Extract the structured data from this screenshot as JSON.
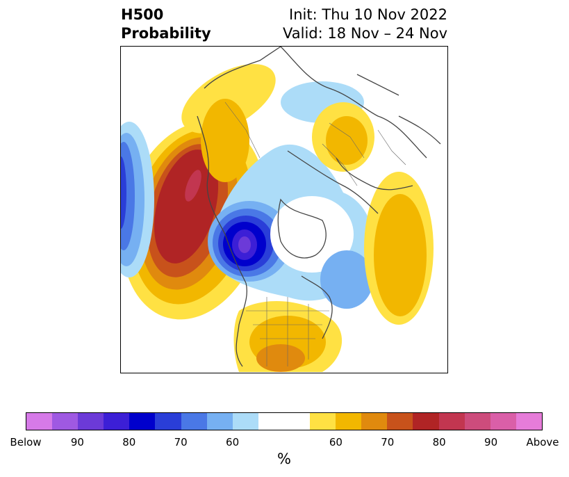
{
  "title": {
    "line1": "H500",
    "line2": "Probability",
    "init": "Init: Thu 10 Nov 2022",
    "valid": "Valid: 18 Nov – 24 Nov"
  },
  "colorbar": {
    "unit": "%",
    "colors": [
      "#d67ae8",
      "#9f59e2",
      "#6c3ad8",
      "#3c1fd6",
      "#0000cc",
      "#2a3ed8",
      "#4a78e6",
      "#76b0f2",
      "#acdcf8",
      "#ffffff",
      "#ffe143",
      "#f2b700",
      "#e08a0e",
      "#c8521b",
      "#b02425",
      "#c23650",
      "#cd4c7c",
      "#da5fa8",
      "#e67cd9"
    ],
    "tick_labels": [
      "Below",
      "90",
      "80",
      "70",
      "60",
      "60",
      "70",
      "80",
      "90",
      "Above"
    ]
  },
  "map": {
    "projection": "north-polar-stereographic",
    "features": [
      "above-normal-alaska-north-pacific",
      "below-normal-central-canada",
      "above-normal-central-us",
      "above-normal-western-siberia",
      "above-normal-eastern-europe",
      "below-normal-north-atlantic"
    ]
  }
}
